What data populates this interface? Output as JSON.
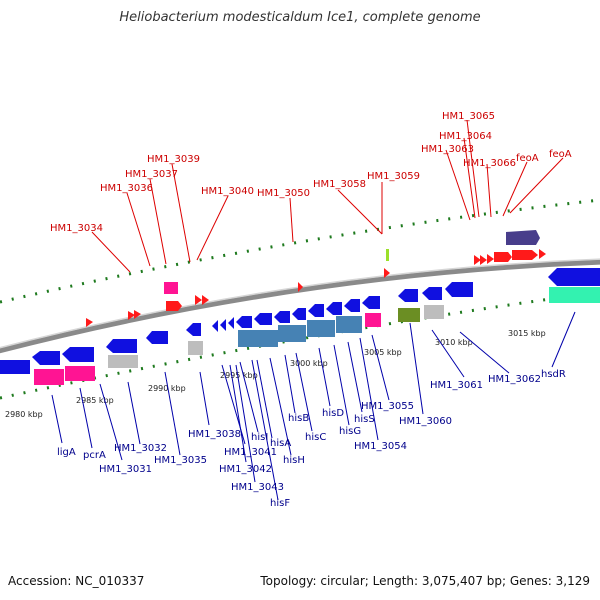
{
  "title": "Heliobacterium modesticaldum Ice1, complete genome",
  "footer": {
    "accession": "Accession: NC_010337",
    "summary": "Topology: circular; Length: 3,075,407 bp; Genes: 3,129"
  },
  "scale_labels": [
    "2980 kbp",
    "2985 kbp",
    "2990 kbp",
    "2995 kbp",
    "3000 kbp",
    "3005 kbp",
    "3010 kbp",
    "3015 kbp"
  ],
  "upper_labels": [
    "HM1_3034",
    "HM1_3036",
    "HM1_3037",
    "HM1_3039",
    "HM1_3040",
    "HM1_3050",
    "HM1_3058",
    "HM1_3059",
    "HM1_3063",
    "HM1_3064",
    "HM1_3065",
    "HM1_3066",
    "feoA",
    "feoA"
  ],
  "lower_labels": [
    "ligA",
    "pcrA",
    "HM1_3031",
    "HM1_3032",
    "HM1_3035",
    "HM1_3038",
    "HM1_3041",
    "HM1_3042",
    "HM1_3043",
    "hisF",
    "hisI",
    "hisA",
    "hisH",
    "hisB",
    "hisC",
    "hisD",
    "hisG",
    "hisS",
    "HM1_3054",
    "HM1_3055",
    "HM1_3060",
    "HM1_3061",
    "HM1_3062",
    "hsdR"
  ],
  "colors": {
    "forward_gene": "#ff1a1a",
    "reverse_gene": "#1010e0",
    "rna": "#ff1493",
    "pseudo": "#bdbdbd",
    "his_operon": "#4682b4",
    "olive": "#6b8e23",
    "dark_blue": "#483d8b",
    "aqua": "#33f2b0",
    "tick_green": "#1e7a1e",
    "label_red": "#cc0000",
    "label_blue": "#00008b"
  }
}
